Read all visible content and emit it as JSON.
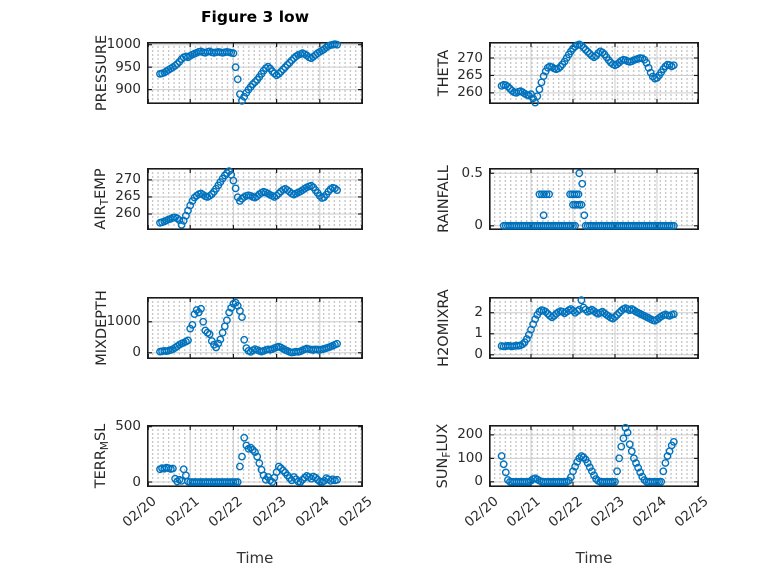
{
  "title": "Figure 3 low",
  "xlabel": "Time",
  "x_tick_labels": [
    "02/20",
    "02/21",
    "02/22",
    "02/23",
    "02/24",
    "02/25"
  ],
  "x_range": [
    0,
    5
  ],
  "colors": {
    "marker": "#0072BD",
    "axis_box": "#1a1a1a",
    "major_grid": "#cdcdcd",
    "minor_grid_dots": "#bdbdbd",
    "text": "#2b2b2b"
  },
  "chart_data": [
    {
      "type": "scatter",
      "name": "PRESSURE",
      "slug": "pressure",
      "row": 0,
      "col": 0,
      "ylabel_parts": [
        {
          "t": "PRESSURE",
          "sub": false
        }
      ],
      "yticks": [
        900,
        950,
        1000
      ],
      "ytick_labels": [
        "900",
        "950",
        "1000"
      ],
      "ylim": [
        868,
        1006
      ],
      "x_start": 0.3,
      "x_step": 0.05,
      "y": [
        935,
        936,
        938,
        941,
        944,
        947,
        950,
        953,
        957,
        962,
        968,
        972,
        974,
        972,
        975,
        978,
        980,
        982,
        984,
        985,
        983,
        982,
        984,
        985,
        983,
        982,
        983,
        984,
        983,
        982,
        983,
        984,
        983,
        982,
        981,
        950,
        923,
        890,
        875,
        884,
        893,
        900,
        906,
        912,
        917,
        922,
        928,
        935,
        942,
        948,
        951,
        947,
        941,
        936,
        932,
        935,
        940,
        945,
        950,
        955,
        960,
        965,
        970,
        974,
        977,
        979,
        981,
        979,
        976,
        972,
        970,
        973,
        977,
        981,
        984,
        987,
        990,
        994,
        997,
        999,
        1000,
        1001,
        1000
      ]
    },
    {
      "type": "scatter",
      "name": "THETA",
      "slug": "theta",
      "row": 0,
      "col": 1,
      "ylabel_parts": [
        {
          "t": "THETA",
          "sub": false
        }
      ],
      "yticks": [
        260,
        265,
        270
      ],
      "ytick_labels": [
        "260",
        "265",
        "270"
      ],
      "ylim": [
        256.8,
        274.6
      ],
      "x_start": 0.3,
      "x_step": 0.05,
      "y": [
        262.0,
        262.3,
        262.2,
        261.8,
        261.2,
        260.6,
        260.2,
        260.0,
        260.3,
        260.5,
        260.2,
        259.8,
        259.4,
        259.2,
        259.6,
        258.4,
        257.2,
        259.0,
        261.0,
        263.0,
        264.8,
        266.2,
        267.2,
        267.6,
        267.4,
        267.0,
        266.8,
        267.0,
        267.5,
        268.2,
        269.0,
        270.0,
        271.0,
        271.9,
        272.7,
        273.3,
        273.7,
        273.9,
        273.6,
        273.0,
        272.4,
        271.8,
        271.2,
        270.6,
        270.2,
        270.6,
        271.4,
        271.9,
        271.6,
        271.0,
        270.2,
        269.4,
        268.7,
        268.2,
        267.9,
        268.2,
        268.7,
        269.2,
        269.5,
        269.4,
        269.1,
        268.9,
        269.1,
        269.4,
        269.6,
        269.8,
        270.0,
        269.9,
        269.5,
        268.6,
        267.2,
        265.8,
        264.7,
        264.1,
        264.3,
        265.0,
        265.9,
        266.8,
        267.6,
        268.1,
        268.0,
        267.6,
        267.9
      ]
    },
    {
      "type": "scatter",
      "name": "AIR_TEMP",
      "slug": "air-temp",
      "row": 1,
      "col": 0,
      "ylabel_parts": [
        {
          "t": "AIR",
          "sub": false
        },
        {
          "t": "T",
          "sub": true
        },
        {
          "t": "EMP",
          "sub": false
        }
      ],
      "yticks": [
        260,
        265,
        270
      ],
      "ytick_labels": [
        "260",
        "265",
        "270"
      ],
      "ylim": [
        255.3,
        273.5
      ],
      "x_start": 0.3,
      "x_step": 0.05,
      "y": [
        257.4,
        257.6,
        257.8,
        258.1,
        258.4,
        258.6,
        258.9,
        259.0,
        258.7,
        258.2,
        256.8,
        258.0,
        259.5,
        261.0,
        262.5,
        263.8,
        264.8,
        265.4,
        265.8,
        266.0,
        265.6,
        265.2,
        265.0,
        265.3,
        265.8,
        266.5,
        267.4,
        268.4,
        269.4,
        270.4,
        271.3,
        272.0,
        272.6,
        271.5,
        269.8,
        267.5,
        264.9,
        263.8,
        264.5,
        265.0,
        265.3,
        265.5,
        265.3,
        265.0,
        264.8,
        265.2,
        265.8,
        266.2,
        266.5,
        266.3,
        266.0,
        265.6,
        265.3,
        265.0,
        265.4,
        266.0,
        266.6,
        267.1,
        267.4,
        267.0,
        266.5,
        266.0,
        265.7,
        266.0,
        266.3,
        266.6,
        267.0,
        267.4,
        267.8,
        268.1,
        268.3,
        267.8,
        267.0,
        266.2,
        265.3,
        264.7,
        264.9,
        265.7,
        266.6,
        267.3,
        267.7,
        267.5,
        267.0
      ]
    },
    {
      "type": "scatter",
      "name": "RAINFALL",
      "slug": "rainfall",
      "row": 1,
      "col": 1,
      "ylabel_parts": [
        {
          "t": "RAINFALL",
          "sub": false
        }
      ],
      "yticks": [
        0,
        0.5
      ],
      "ytick_labels": [
        "0",
        "0.5"
      ],
      "ylim": [
        -0.04,
        0.55
      ],
      "x_start": 0.3,
      "x_step": 0.05,
      "y": [
        null,
        0,
        0,
        0,
        0,
        0,
        0,
        0,
        0,
        0,
        0,
        0,
        0,
        0,
        0,
        0,
        0,
        0,
        0,
        0,
        0,
        0,
        0,
        0,
        0,
        0,
        0,
        0,
        0,
        0,
        0,
        0,
        0,
        0,
        0,
        0,
        null,
        null,
        null,
        null,
        0,
        0,
        0,
        0,
        0,
        0,
        0,
        0,
        0,
        0,
        0,
        0,
        0,
        0,
        0,
        0,
        0,
        0,
        0,
        0,
        0,
        0,
        0,
        0,
        0,
        0,
        0,
        0,
        0,
        0,
        0,
        0,
        0,
        0,
        0,
        0,
        0,
        0,
        0,
        0,
        0,
        0,
        0
      ],
      "extra_points": [
        [
          1.2,
          0.3
        ],
        [
          1.26,
          0.3
        ],
        [
          1.31,
          0.3
        ],
        [
          1.37,
          0.3
        ],
        [
          1.43,
          0.3
        ],
        [
          1.3,
          0.1
        ],
        [
          1.93,
          0.3
        ],
        [
          1.98,
          0.3
        ],
        [
          2.03,
          0.3
        ],
        [
          2.08,
          0.3
        ],
        [
          2.13,
          0.3
        ],
        [
          2.0,
          0.2
        ],
        [
          2.05,
          0.2
        ],
        [
          2.1,
          0.2
        ],
        [
          2.15,
          0.2
        ],
        [
          2.2,
          0.2
        ],
        [
          2.15,
          0.5
        ],
        [
          2.22,
          0.4
        ],
        [
          2.27,
          0.1
        ]
      ]
    },
    {
      "type": "scatter",
      "name": "MIXDEPTH",
      "slug": "mixdepth",
      "row": 2,
      "col": 0,
      "ylabel_parts": [
        {
          "t": "MIXDEPTH",
          "sub": false
        }
      ],
      "yticks": [
        0,
        1000
      ],
      "ytick_labels": [
        "0",
        "1000"
      ],
      "ylim": [
        -200,
        1800
      ],
      "x_start": 0.3,
      "x_step": 0.05,
      "y": [
        40,
        50,
        60,
        55,
        70,
        90,
        120,
        160,
        210,
        260,
        300,
        330,
        360,
        400,
        780,
        900,
        1250,
        1380,
        1300,
        1420,
        1000,
        720,
        650,
        600,
        380,
        260,
        170,
        300,
        430,
        650,
        850,
        1050,
        1300,
        1450,
        1580,
        1620,
        1520,
        1350,
        1150,
        420,
        150,
        60,
        30,
        80,
        120,
        90,
        60,
        40,
        60,
        90,
        110,
        100,
        120,
        150,
        180,
        200,
        170,
        130,
        90,
        60,
        30,
        10,
        20,
        40,
        30,
        50,
        80,
        110,
        140,
        120,
        100,
        90,
        110,
        100,
        90,
        110,
        130,
        150,
        170,
        200,
        230,
        260,
        290
      ]
    },
    {
      "type": "scatter",
      "name": "H2OMIXRA",
      "slug": "h2omixra",
      "row": 2,
      "col": 1,
      "ylabel_parts": [
        {
          "t": "H2OMIXRA",
          "sub": false
        }
      ],
      "yticks": [
        0,
        1,
        2
      ],
      "ytick_labels": [
        "0",
        "1",
        "2"
      ],
      "ylim": [
        -0.2,
        2.75
      ],
      "x_start": 0.3,
      "x_step": 0.05,
      "y": [
        0.42,
        0.4,
        0.41,
        0.43,
        0.42,
        0.4,
        0.42,
        0.44,
        0.43,
        0.45,
        0.5,
        0.6,
        0.75,
        0.95,
        1.2,
        1.45,
        1.7,
        1.9,
        2.05,
        2.12,
        2.1,
        2.05,
        1.95,
        1.85,
        1.78,
        1.85,
        1.95,
        2.02,
        2.08,
        2.05,
        1.98,
        2.05,
        2.12,
        2.18,
        2.1,
        2.0,
        2.08,
        2.15,
        2.6,
        2.25,
        2.15,
        2.05,
        2.1,
        2.15,
        2.08,
        2.0,
        1.95,
        2.0,
        2.05,
        1.98,
        1.9,
        1.83,
        1.76,
        1.72,
        1.8,
        1.9,
        2.0,
        2.1,
        2.18,
        2.22,
        2.18,
        2.12,
        2.18,
        2.12,
        2.05,
        2.0,
        1.95,
        1.9,
        1.85,
        1.8,
        1.75,
        1.7,
        1.65,
        1.62,
        1.68,
        1.75,
        1.82,
        1.88,
        1.92,
        1.88,
        1.85,
        1.9,
        1.93
      ]
    },
    {
      "type": "scatter",
      "name": "TERR_MSL",
      "slug": "terr-msl",
      "row": 3,
      "col": 0,
      "ylabel_parts": [
        {
          "t": "TERR",
          "sub": false
        },
        {
          "t": "M",
          "sub": true
        },
        {
          "t": "SL",
          "sub": false
        }
      ],
      "yticks": [
        0,
        500
      ],
      "ytick_labels": [
        "0",
        "500"
      ],
      "ylim": [
        -45,
        515
      ],
      "x_start": 0.3,
      "x_step": 0.05,
      "y": [
        115,
        125,
        120,
        130,
        125,
        118,
        122,
        30,
        5,
        20,
        10,
        115,
        60,
        5,
        0,
        0,
        0,
        0,
        0,
        0,
        0,
        0,
        0,
        0,
        0,
        0,
        0,
        0,
        0,
        0,
        0,
        0,
        0,
        0,
        0,
        0,
        0,
        140,
        230,
        400,
        330,
        300,
        310,
        290,
        270,
        230,
        170,
        110,
        60,
        20,
        45,
        15,
        0,
        40,
        90,
        140,
        125,
        105,
        85,
        60,
        35,
        15,
        45,
        25,
        5,
        0,
        20,
        40,
        55,
        45,
        30,
        50,
        40,
        20,
        5,
        0,
        10,
        35,
        25,
        10,
        25,
        15,
        20
      ]
    },
    {
      "type": "scatter",
      "name": "SUN_FLUX",
      "slug": "sun-flux",
      "row": 3,
      "col": 1,
      "ylabel_parts": [
        {
          "t": "SUN",
          "sub": false
        },
        {
          "t": "F",
          "sub": true
        },
        {
          "t": "LUX",
          "sub": false
        }
      ],
      "yticks": [
        0,
        100,
        200
      ],
      "ytick_labels": [
        "0",
        "100",
        "200"
      ],
      "ylim": [
        -22,
        242
      ],
      "x_start": 0.3,
      "x_step": 0.05,
      "y": [
        110,
        75,
        40,
        8,
        0,
        0,
        0,
        0,
        0,
        0,
        0,
        0,
        0,
        0,
        5,
        12,
        15,
        10,
        5,
        0,
        0,
        0,
        0,
        0,
        0,
        0,
        0,
        0,
        0,
        0,
        0,
        0,
        5,
        20,
        45,
        65,
        85,
        100,
        110,
        105,
        95,
        80,
        62,
        45,
        28,
        12,
        4,
        0,
        0,
        0,
        0,
        0,
        0,
        0,
        0,
        45,
        100,
        150,
        185,
        230,
        210,
        160,
        130,
        100,
        80,
        60,
        40,
        22,
        8,
        0,
        0,
        0,
        0,
        0,
        0,
        0,
        0,
        45,
        80,
        110,
        130,
        155,
        170
      ]
    }
  ]
}
